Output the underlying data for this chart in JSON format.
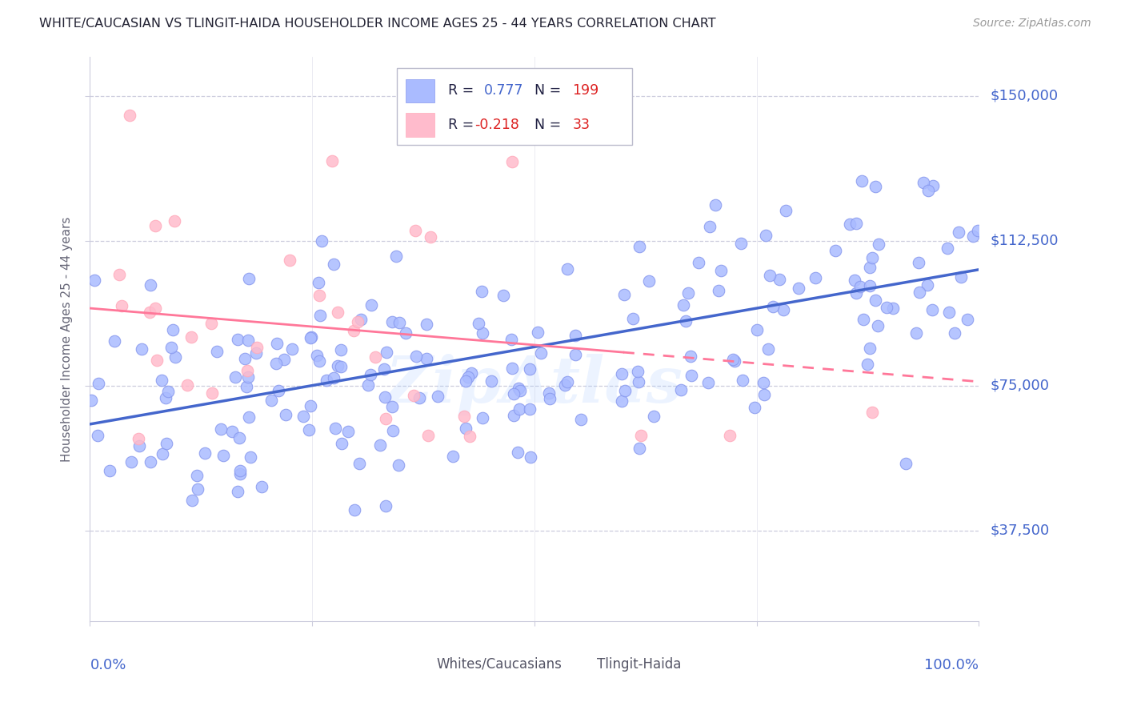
{
  "title": "WHITE/CAUCASIAN VS TLINGIT-HAIDA HOUSEHOLDER INCOME AGES 25 - 44 YEARS CORRELATION CHART",
  "source": "Source: ZipAtlas.com",
  "ylabel": "Householder Income Ages 25 - 44 years",
  "legend_label1": "Whites/Caucasians",
  "legend_label2": "Tlingit-Haida",
  "R1": 0.777,
  "N1": 199,
  "R2": -0.218,
  "N2": 33,
  "color_blue_fill": "#AABBFF",
  "color_blue_edge": "#8899EE",
  "color_pink_fill": "#FFBBCC",
  "color_pink_edge": "#FFAABB",
  "color_blue_line": "#4466CC",
  "color_pink_line": "#FF7799",
  "color_label_blue": "#4466CC",
  "color_label_red": "#DD2222",
  "color_label_dark": "#222244",
  "color_grid": "#CCCCDD",
  "yticks": [
    37500,
    75000,
    112500,
    150000
  ],
  "ytick_labels": [
    "$37,500",
    "$75,000",
    "$112,500",
    "$150,000"
  ],
  "xmin": 0.0,
  "xmax": 1.0,
  "ymin": 14000,
  "ymax": 160000,
  "blue_line_y0": 65000,
  "blue_line_y1": 105000,
  "pink_line_y0": 95000,
  "pink_line_y1": 76000
}
